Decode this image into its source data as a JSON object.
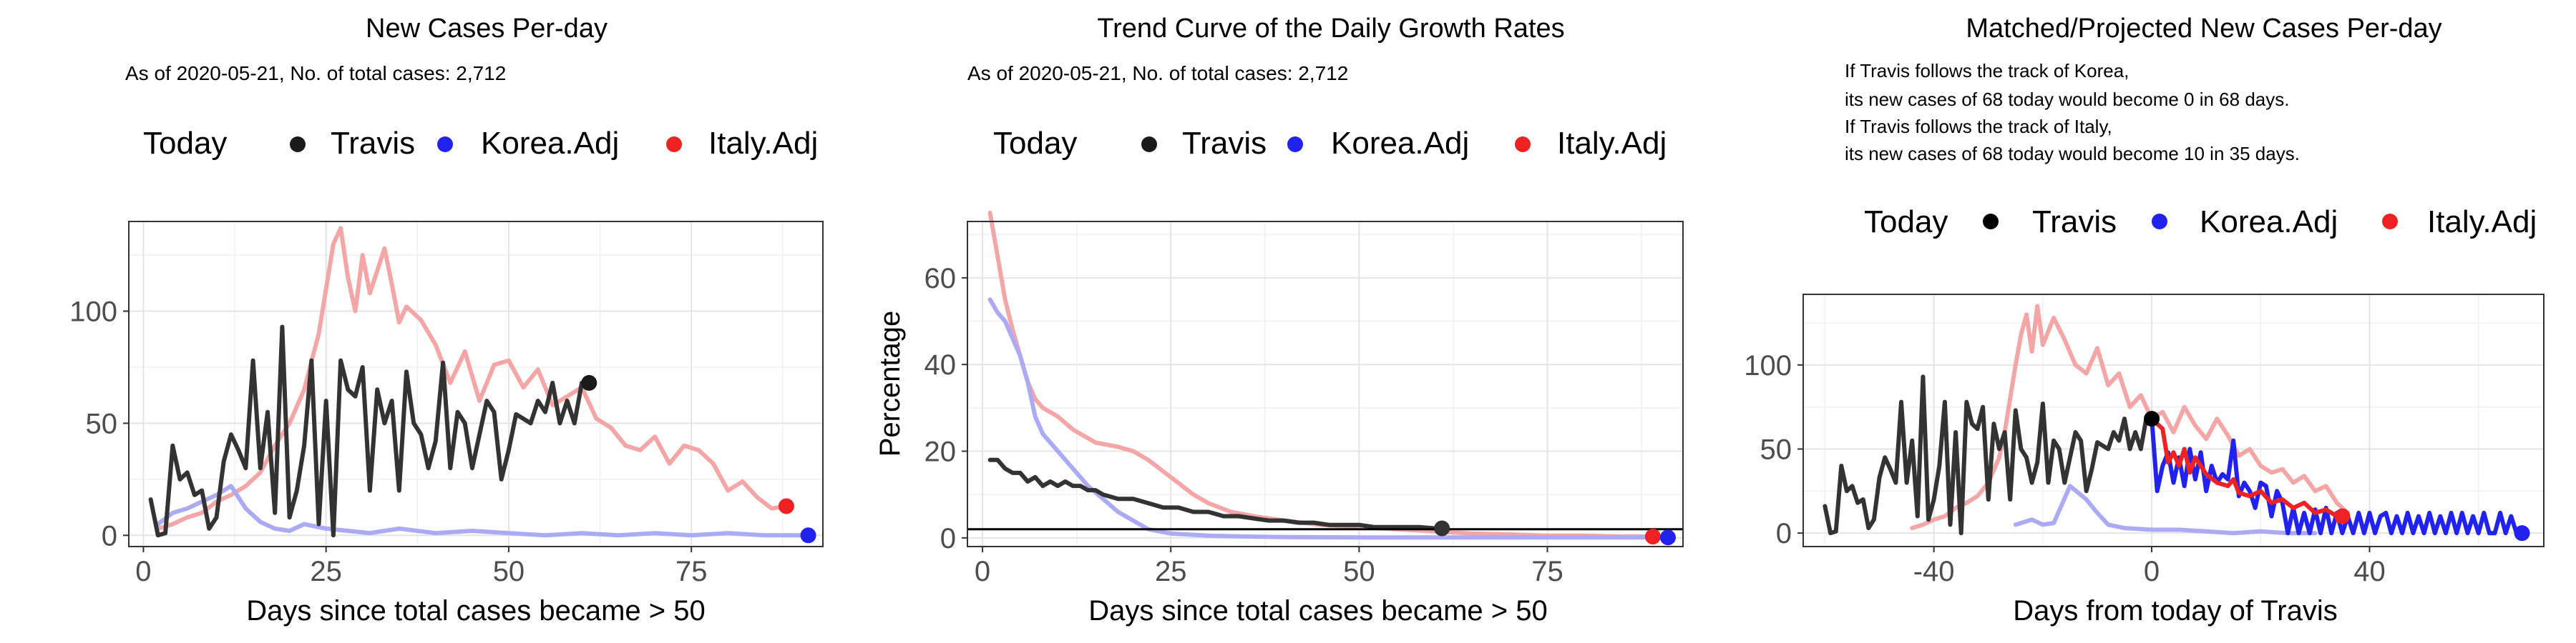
{
  "chart_data": [
    {
      "type": "line",
      "title": "New Cases Per-day",
      "subtitle": "As of 2020-05-21, No. of total cases: 2,712",
      "xlabel": "Days since total cases became > 50",
      "ylabel": "",
      "xlim": [
        -2,
        93
      ],
      "ylim": [
        -5,
        140
      ],
      "xticks": [
        0,
        25,
        50,
        75
      ],
      "yticks": [
        0,
        50,
        100
      ],
      "grid": true,
      "legend": {
        "title": "Today",
        "placement": "top",
        "entries": [
          {
            "label": "Travis",
            "color": "#1a1a1a"
          },
          {
            "label": "Korea.Adj",
            "color": "#2222ee"
          },
          {
            "label": "Italy.Adj",
            "color": "#ee2222"
          }
        ]
      },
      "series": [
        {
          "name": "Italy.Adj",
          "color": "#f4a6a6",
          "x": [
            2,
            4,
            6,
            8,
            10,
            12,
            14,
            16,
            18,
            20,
            22,
            24,
            25,
            26,
            27,
            28,
            29,
            30,
            31,
            32,
            33,
            34,
            35,
            36,
            38,
            40,
            42,
            44,
            46,
            48,
            50,
            52,
            54,
            56,
            58,
            60,
            62,
            64,
            66,
            68,
            70,
            72,
            74,
            76,
            78,
            80,
            82,
            84,
            86,
            88
          ],
          "y": [
            3,
            5,
            8,
            10,
            15,
            18,
            22,
            28,
            40,
            50,
            65,
            90,
            110,
            130,
            137,
            115,
            100,
            125,
            108,
            118,
            128,
            112,
            95,
            102,
            96,
            85,
            68,
            82,
            60,
            76,
            78,
            66,
            74,
            58,
            62,
            66,
            52,
            48,
            40,
            38,
            44,
            32,
            40,
            38,
            32,
            20,
            24,
            17,
            12,
            13
          ]
        },
        {
          "name": "Korea.Adj",
          "color": "#aaaaf5",
          "x": [
            2,
            4,
            6,
            8,
            10,
            12,
            14,
            16,
            18,
            20,
            22,
            25,
            28,
            31,
            35,
            40,
            45,
            50,
            55,
            60,
            65,
            70,
            75,
            80,
            85,
            90
          ],
          "y": [
            5,
            10,
            12,
            15,
            18,
            22,
            12,
            6,
            3,
            2,
            5,
            3,
            2,
            1,
            3,
            1,
            2,
            1,
            0,
            1,
            0,
            1,
            0,
            1,
            0,
            0
          ]
        },
        {
          "name": "Travis",
          "color": "#333333",
          "x": [
            1,
            2,
            3,
            4,
            5,
            6,
            7,
            8,
            9,
            10,
            11,
            12,
            13,
            14,
            15,
            16,
            17,
            18,
            19,
            20,
            21,
            22,
            23,
            24,
            25,
            26,
            27,
            28,
            29,
            30,
            31,
            32,
            33,
            34,
            35,
            36,
            37,
            38,
            39,
            40,
            41,
            42,
            43,
            44,
            45,
            46,
            47,
            48,
            49,
            50,
            51,
            52,
            53,
            54,
            55,
            56,
            57,
            58,
            59,
            60,
            61
          ],
          "y": [
            16,
            0,
            1,
            40,
            25,
            28,
            18,
            20,
            3,
            8,
            33,
            45,
            38,
            30,
            78,
            30,
            55,
            10,
            93,
            8,
            20,
            40,
            78,
            5,
            60,
            0,
            78,
            65,
            62,
            75,
            20,
            65,
            50,
            60,
            20,
            73,
            50,
            45,
            30,
            42,
            77,
            30,
            55,
            50,
            30,
            45,
            60,
            55,
            25,
            38,
            54,
            52,
            50,
            60,
            55,
            68,
            50,
            60,
            50,
            68,
            68
          ]
        }
      ],
      "today_points": [
        {
          "series": "Travis",
          "x": 61,
          "y": 68,
          "color": "#1a1a1a"
        },
        {
          "series": "Italy.Adj",
          "x": 88,
          "y": 13,
          "color": "#ee2222"
        },
        {
          "series": "Korea.Adj",
          "x": 91,
          "y": 0,
          "color": "#2222ee"
        }
      ]
    },
    {
      "type": "line",
      "title": "Trend Curve of the Daily Growth Rates",
      "subtitle": "As of 2020-05-21, No. of total cases: 2,712",
      "xlabel": "Days since total cases became > 50",
      "ylabel": "Percentage",
      "xlim": [
        -2,
        93
      ],
      "ylim": [
        -2,
        73
      ],
      "xticks": [
        0,
        25,
        50,
        75
      ],
      "yticks": [
        0,
        20,
        40,
        60
      ],
      "grid": true,
      "hline": 2,
      "legend": {
        "title": "Today",
        "placement": "top",
        "entries": [
          {
            "label": "Travis",
            "color": "#1a1a1a"
          },
          {
            "label": "Korea.Adj",
            "color": "#2222ee"
          },
          {
            "label": "Italy.Adj",
            "color": "#ee2222"
          }
        ]
      },
      "series": [
        {
          "name": "Italy.Adj",
          "color": "#f4a6a6",
          "x": [
            1,
            2,
            3,
            4,
            5,
            6,
            7,
            8,
            10,
            12,
            15,
            18,
            20,
            22,
            25,
            28,
            30,
            33,
            36,
            40,
            45,
            50,
            55,
            60,
            65,
            70,
            75,
            80,
            85,
            88
          ],
          "y": [
            75,
            65,
            55,
            48,
            42,
            36,
            32,
            30,
            28,
            25,
            22,
            21,
            20,
            18,
            14,
            10,
            8,
            6,
            5,
            4,
            3,
            2.5,
            2,
            1.5,
            1,
            0.8,
            0.5,
            0.5,
            0.3,
            0.3
          ]
        },
        {
          "name": "Korea.Adj",
          "color": "#aaaaf5",
          "x": [
            1,
            2,
            3,
            4,
            5,
            6,
            7,
            8,
            9,
            10,
            12,
            14,
            16,
            18,
            20,
            22,
            25,
            30,
            35,
            40,
            50,
            60,
            70,
            80,
            91
          ],
          "y": [
            55,
            52,
            50,
            46,
            42,
            36,
            28,
            24,
            22,
            20,
            16,
            12,
            9,
            6,
            4,
            2,
            1,
            0.5,
            0.3,
            0.2,
            0.1,
            0.1,
            0.1,
            0.1,
            0.1
          ]
        },
        {
          "name": "Travis",
          "color": "#333333",
          "x": [
            1,
            2,
            3,
            4,
            5,
            6,
            7,
            8,
            9,
            10,
            11,
            12,
            13,
            14,
            15,
            16,
            18,
            20,
            22,
            24,
            26,
            28,
            30,
            32,
            34,
            36,
            38,
            40,
            42,
            44,
            46,
            48,
            50,
            52,
            54,
            56,
            58,
            60,
            61
          ],
          "y": [
            18,
            18,
            16,
            15,
            15,
            13,
            14,
            12,
            13,
            12,
            13,
            12,
            12,
            11,
            11,
            10,
            9,
            9,
            8,
            7,
            7,
            6,
            6,
            5,
            5,
            4.5,
            4,
            4,
            3.5,
            3.5,
            3,
            3,
            3,
            2.5,
            2.5,
            2.5,
            2.5,
            2.2,
            2.2
          ]
        }
      ],
      "today_points": [
        {
          "series": "Travis",
          "x": 61,
          "y": 2.2,
          "color": "#333333"
        },
        {
          "series": "Italy.Adj",
          "x": 89,
          "y": 0.3,
          "color": "#ee2222"
        },
        {
          "series": "Korea.Adj",
          "x": 91,
          "y": 0.1,
          "color": "#2222ee"
        }
      ]
    },
    {
      "type": "line",
      "title": "Matched/Projected New Cases Per-day",
      "subtitle_lines": [
        "If Travis follows the track of Korea,",
        "its new cases of 68 today would become 0 in 68 days.",
        "If Travis follows the track of Italy,",
        "its new cases of 68 today would become 10 in 35 days."
      ],
      "xlabel": "Days from today of Travis",
      "ylabel": "",
      "xlim": [
        -64,
        72
      ],
      "ylim": [
        -8,
        142
      ],
      "xticks": [
        -40,
        0,
        40
      ],
      "yticks": [
        0,
        50,
        100
      ],
      "grid": true,
      "legend": {
        "title": "Today",
        "placement": "top",
        "entries": [
          {
            "label": "Travis",
            "color": "#000000"
          },
          {
            "label": "Korea.Adj",
            "color": "#2222ee"
          },
          {
            "label": "Italy.Adj",
            "color": "#ee2222"
          }
        ]
      },
      "series": [
        {
          "name": "Italy.Adj (matched)",
          "color": "#f4a6a6",
          "x": [
            -44,
            -42,
            -40,
            -38,
            -36,
            -34,
            -32,
            -30,
            -28,
            -27,
            -26,
            -25,
            -24,
            -23,
            -22,
            -21,
            -20,
            -18,
            -16,
            -14,
            -12,
            -10,
            -8,
            -6,
            -4,
            -2,
            0,
            2,
            4,
            6,
            8,
            10,
            12,
            14,
            16,
            18,
            20,
            22,
            24,
            26,
            28,
            30,
            32,
            34,
            36
          ],
          "y": [
            3,
            5,
            8,
            10,
            15,
            18,
            22,
            30,
            45,
            60,
            80,
            100,
            118,
            130,
            108,
            135,
            112,
            128,
            115,
            100,
            95,
            110,
            88,
            95,
            75,
            82,
            68,
            72,
            60,
            75,
            64,
            56,
            68,
            58,
            46,
            50,
            40,
            36,
            38,
            30,
            34,
            25,
            28,
            18,
            12
          ]
        },
        {
          "name": "Korea.Adj (matched)",
          "color": "#aaaaf5",
          "x": [
            -25,
            -22,
            -20,
            -18,
            -15,
            -12,
            -10,
            -8,
            -5,
            0,
            5,
            10,
            15,
            20,
            25,
            30
          ],
          "y": [
            5,
            8,
            5,
            6,
            28,
            20,
            12,
            5,
            3,
            2,
            2,
            1,
            0,
            1,
            0,
            0
          ]
        },
        {
          "name": "Travis",
          "color": "#333333",
          "x": [
            -60,
            -59,
            -58,
            -57,
            -56,
            -55,
            -54,
            -53,
            -52,
            -51,
            -50,
            -49,
            -48,
            -47,
            -46,
            -45,
            -44,
            -43,
            -42,
            -41,
            -40,
            -39,
            -38,
            -37,
            -36,
            -35,
            -34,
            -33,
            -32,
            -31,
            -30,
            -29,
            -28,
            -27,
            -26,
            -25,
            -24,
            -23,
            -22,
            -21,
            -20,
            -19,
            -18,
            -17,
            -16,
            -15,
            -14,
            -13,
            -12,
            -11,
            -10,
            -9,
            -8,
            -7,
            -6,
            -5,
            -4,
            -3,
            -2,
            -1,
            0
          ],
          "y": [
            16,
            0,
            1,
            40,
            25,
            28,
            18,
            20,
            3,
            8,
            33,
            45,
            38,
            30,
            78,
            30,
            55,
            10,
            93,
            8,
            20,
            40,
            78,
            5,
            60,
            0,
            78,
            65,
            62,
            75,
            20,
            65,
            50,
            60,
            20,
            73,
            50,
            45,
            30,
            42,
            77,
            30,
            55,
            50,
            30,
            45,
            60,
            55,
            25,
            38,
            54,
            52,
            50,
            60,
            55,
            68,
            50,
            60,
            50,
            68,
            68
          ]
        },
        {
          "name": "Korea.Adj",
          "color": "#2222ee",
          "x": [
            0,
            1,
            2,
            3,
            4,
            5,
            6,
            7,
            8,
            9,
            10,
            11,
            12,
            13,
            14,
            15,
            16,
            17,
            18,
            19,
            20,
            21,
            22,
            23,
            24,
            25,
            26,
            27,
            28,
            29,
            30,
            31,
            32,
            33,
            34,
            35,
            36,
            37,
            38,
            39,
            40,
            41,
            42,
            43,
            44,
            45,
            46,
            47,
            48,
            49,
            50,
            51,
            52,
            53,
            54,
            55,
            56,
            57,
            58,
            59,
            60,
            61,
            62,
            63,
            64,
            65,
            66,
            67,
            68
          ],
          "y": [
            68,
            25,
            40,
            48,
            30,
            45,
            28,
            50,
            32,
            48,
            25,
            40,
            30,
            35,
            32,
            55,
            22,
            30,
            25,
            15,
            30,
            28,
            10,
            25,
            18,
            0,
            15,
            0,
            12,
            0,
            14,
            0,
            15,
            0,
            12,
            0,
            10,
            0,
            12,
            0,
            12,
            0,
            10,
            12,
            0,
            10,
            0,
            12,
            0,
            10,
            0,
            12,
            0,
            10,
            0,
            12,
            0,
            12,
            0,
            10,
            0,
            12,
            0,
            0,
            12,
            0,
            10,
            0,
            0
          ]
        },
        {
          "name": "Italy.Adj",
          "color": "#ee2222",
          "x": [
            0,
            2,
            3,
            4,
            5,
            6,
            7,
            8,
            10,
            12,
            14,
            15,
            16,
            18,
            20,
            22,
            24,
            26,
            28,
            30,
            32,
            34,
            35
          ],
          "y": [
            68,
            62,
            42,
            48,
            40,
            50,
            36,
            45,
            35,
            30,
            28,
            32,
            24,
            22,
            25,
            18,
            20,
            15,
            18,
            12,
            14,
            10,
            10
          ]
        }
      ],
      "today_points": [
        {
          "series": "Travis",
          "x": 0,
          "y": 68,
          "color": "#000000"
        },
        {
          "series": "Italy.Adj",
          "x": 35,
          "y": 10,
          "color": "#ee2222"
        },
        {
          "series": "Korea.Adj",
          "x": 68,
          "y": 0,
          "color": "#2222ee"
        }
      ]
    }
  ]
}
